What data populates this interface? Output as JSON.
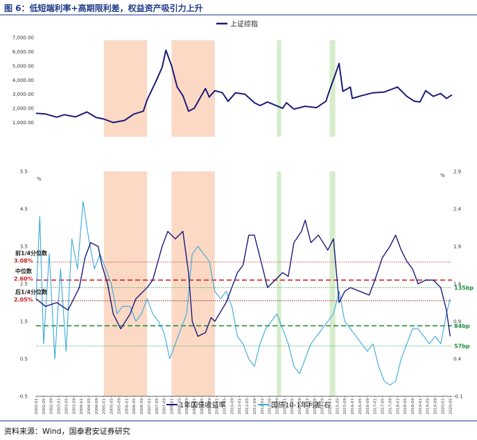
{
  "figure": {
    "title": "图 6：低短端利率+高期限利差，权益资产吸引力上升",
    "source": "资料来源：Wind，国泰君安证券研究"
  },
  "colors": {
    "index_line": "#1a1a7a",
    "yield_line": "#1a1a7a",
    "spread_line": "#38a8dc",
    "tightening_band": "#fbd9c5",
    "easing_band": "#d6ecca",
    "upper_quartile_line": "#c0392b",
    "median_line": "#cc1f1f",
    "lower_quartile_line": "#8b0000",
    "spread_135_line": "#3aa55a",
    "spread_84_line": "#1e8c3a",
    "spread_57_line": "#3aa55a",
    "red_text": "#cc1f1f",
    "green_text": "#1e8c3a"
  },
  "chart_data": [
    {
      "type": "line",
      "legend": [
        "上证综指"
      ],
      "legend_position": "top-center",
      "y_ticks": [
        "7,000.00",
        "6,000.00",
        "5,000.00",
        "4,000.00",
        "3,000.00",
        "2,000.00",
        "1,000.00"
      ],
      "ylim": [
        0,
        7000
      ],
      "xlim": [
        "2002-01",
        "2020-06"
      ],
      "grid": false,
      "series": [
        {
          "name": "上证综指",
          "points": [
            [
              "2002-01",
              1650
            ],
            [
              "2002-06",
              1600
            ],
            [
              "2002-12",
              1380
            ],
            [
              "2003-04",
              1550
            ],
            [
              "2003-10",
              1400
            ],
            [
              "2004-04",
              1750
            ],
            [
              "2004-09",
              1350
            ],
            [
              "2005-01",
              1250
            ],
            [
              "2005-06",
              1000
            ],
            [
              "2005-12",
              1150
            ],
            [
              "2006-05",
              1600
            ],
            [
              "2006-10",
              1800
            ],
            [
              "2006-12",
              2600
            ],
            [
              "2007-05",
              4000
            ],
            [
              "2007-08",
              4900
            ],
            [
              "2007-10",
              6100
            ],
            [
              "2008-01",
              5000
            ],
            [
              "2008-04",
              3500
            ],
            [
              "2008-07",
              2900
            ],
            [
              "2008-10",
              1800
            ],
            [
              "2009-01",
              2000
            ],
            [
              "2009-07",
              3400
            ],
            [
              "2009-09",
              2800
            ],
            [
              "2009-12",
              3250
            ],
            [
              "2010-04",
              3100
            ],
            [
              "2010-07",
              2500
            ],
            [
              "2010-11",
              3100
            ],
            [
              "2011-04",
              3000
            ],
            [
              "2011-09",
              2400
            ],
            [
              "2011-12",
              2200
            ],
            [
              "2012-04",
              2450
            ],
            [
              "2012-12",
              2000
            ],
            [
              "2013-02",
              2400
            ],
            [
              "2013-06",
              1950
            ],
            [
              "2013-12",
              2150
            ],
            [
              "2014-06",
              2050
            ],
            [
              "2014-11",
              2500
            ],
            [
              "2015-01",
              3300
            ],
            [
              "2015-04",
              4400
            ],
            [
              "2015-06",
              5170
            ],
            [
              "2015-08",
              3200
            ],
            [
              "2015-12",
              3500
            ],
            [
              "2016-01",
              2700
            ],
            [
              "2016-06",
              2900
            ],
            [
              "2016-12",
              3100
            ],
            [
              "2017-06",
              3150
            ],
            [
              "2017-11",
              3400
            ],
            [
              "2018-01",
              3500
            ],
            [
              "2018-06",
              2850
            ],
            [
              "2018-10",
              2500
            ],
            [
              "2019-01",
              2450
            ],
            [
              "2019-04",
              3250
            ],
            [
              "2019-08",
              2850
            ],
            [
              "2019-12",
              3050
            ],
            [
              "2020-03",
              2700
            ],
            [
              "2020-06",
              2950
            ]
          ]
        }
      ],
      "shaded_periods": [
        {
          "type": "tightening",
          "start": "2005-01",
          "end": "2006-12"
        },
        {
          "type": "tightening",
          "start": "2008-01",
          "end": "2009-12"
        },
        {
          "type": "easing",
          "start": "2012-09",
          "end": "2012-11"
        },
        {
          "type": "easing",
          "start": "2015-01",
          "end": "2015-04"
        }
      ]
    },
    {
      "type": "line",
      "ylabel_left": "%",
      "ylabel_right": "%",
      "y_ticks_left": [
        "5.5",
        "4.5",
        "3.5",
        "2.5",
        "1.5",
        "0.5",
        "-0.5"
      ],
      "y_ticks_right": [
        "2.9",
        "2.4",
        "1.9",
        "1.4",
        "0.9",
        "0.4",
        "-0.1"
      ],
      "ylim_left": [
        -0.5,
        5.5
      ],
      "ylim_right": [
        -0.1,
        2.9
      ],
      "xlim": [
        "2002-01",
        "2020-06"
      ],
      "x_ticks": [
        "2002-01",
        "2002-05",
        "2002-09",
        "2003-01",
        "2003-05",
        "2003-09",
        "2004-01",
        "2004-05",
        "2004-09",
        "2005-01",
        "2005-05",
        "2005-09",
        "2006-01",
        "2006-05",
        "2006-09",
        "2007-01",
        "2007-05",
        "2007-09",
        "2008-01",
        "2008-05",
        "2008-09",
        "2009-01",
        "2009-05",
        "2009-09",
        "2010-01",
        "2010-05",
        "2010-09",
        "2011-01",
        "2011-05",
        "2011-09",
        "2012-01",
        "2012-05",
        "2012-09",
        "2013-01",
        "2013-05",
        "2013-09",
        "2014-01",
        "2014-05",
        "2014-09",
        "2015-01",
        "2015-05",
        "2015-09",
        "2016-01",
        "2016-05",
        "2016-09",
        "2017-01",
        "2017-05",
        "2017-09",
        "2018-01",
        "2018-05",
        "2018-09",
        "2019-01",
        "2019-05",
        "2019-09",
        "2020-01",
        "2020-05"
      ],
      "legend": [
        "1年国债收益率",
        "国债10-1年利差 右"
      ],
      "legend_position": "bottom-center",
      "grid": false,
      "series": [
        {
          "name": "1年国债收益率",
          "axis": "left",
          "points": [
            [
              "2002-01",
              2.1
            ],
            [
              "2002-06",
              1.9
            ],
            [
              "2002-12",
              2.0
            ],
            [
              "2003-06",
              1.8
            ],
            [
              "2003-12",
              2.4
            ],
            [
              "2004-03",
              3.2
            ],
            [
              "2004-06",
              3.6
            ],
            [
              "2004-10",
              3.5
            ],
            [
              "2004-12",
              3.0
            ],
            [
              "2005-03",
              2.5
            ],
            [
              "2005-06",
              1.7
            ],
            [
              "2005-10",
              1.3
            ],
            [
              "2006-03",
              1.7
            ],
            [
              "2006-06",
              2.1
            ],
            [
              "2006-12",
              2.4
            ],
            [
              "2007-03",
              2.6
            ],
            [
              "2007-08",
              3.5
            ],
            [
              "2007-11",
              3.9
            ],
            [
              "2008-03",
              3.7
            ],
            [
              "2008-07",
              3.9
            ],
            [
              "2008-10",
              2.8
            ],
            [
              "2008-12",
              1.5
            ],
            [
              "2009-03",
              1.1
            ],
            [
              "2009-07",
              1.2
            ],
            [
              "2009-10",
              1.6
            ],
            [
              "2009-12",
              1.5
            ],
            [
              "2010-06",
              2.0
            ],
            [
              "2010-12",
              2.8
            ],
            [
              "2011-03",
              3.0
            ],
            [
              "2011-06",
              3.8
            ],
            [
              "2011-09",
              3.8
            ],
            [
              "2011-12",
              3.2
            ],
            [
              "2012-04",
              2.4
            ],
            [
              "2012-08",
              2.6
            ],
            [
              "2012-12",
              2.8
            ],
            [
              "2013-03",
              2.7
            ],
            [
              "2013-06",
              3.6
            ],
            [
              "2013-10",
              3.9
            ],
            [
              "2013-12",
              4.2
            ],
            [
              "2014-03",
              3.6
            ],
            [
              "2014-07",
              3.8
            ],
            [
              "2014-12",
              3.4
            ],
            [
              "2015-03",
              3.7
            ],
            [
              "2015-06",
              2.0
            ],
            [
              "2015-09",
              2.3
            ],
            [
              "2015-12",
              2.4
            ],
            [
              "2016-05",
              2.3
            ],
            [
              "2016-10",
              2.2
            ],
            [
              "2017-01",
              2.6
            ],
            [
              "2017-05",
              3.2
            ],
            [
              "2017-09",
              3.5
            ],
            [
              "2017-12",
              3.8
            ],
            [
              "2018-03",
              3.4
            ],
            [
              "2018-06",
              3.1
            ],
            [
              "2018-09",
              2.9
            ],
            [
              "2018-12",
              2.5
            ],
            [
              "2019-04",
              2.6
            ],
            [
              "2019-08",
              2.6
            ],
            [
              "2019-12",
              2.4
            ],
            [
              "2020-03",
              1.8
            ],
            [
              "2020-05",
              1.1
            ]
          ]
        },
        {
          "name": "国债10-1年利差 右",
          "axis": "right",
          "points": [
            [
              "2002-01",
              1.2
            ],
            [
              "2002-03",
              2.3
            ],
            [
              "2002-05",
              0.6
            ],
            [
              "2002-08",
              1.8
            ],
            [
              "2002-11",
              0.4
            ],
            [
              "2003-02",
              1.6
            ],
            [
              "2003-05",
              0.5
            ],
            [
              "2003-08",
              2.0
            ],
            [
              "2003-11",
              1.6
            ],
            [
              "2004-02",
              2.5
            ],
            [
              "2004-05",
              2.0
            ],
            [
              "2004-08",
              1.6
            ],
            [
              "2004-11",
              1.8
            ],
            [
              "2005-02",
              1.6
            ],
            [
              "2005-05",
              1.4
            ],
            [
              "2005-08",
              1.0
            ],
            [
              "2005-11",
              1.1
            ],
            [
              "2006-03",
              1.1
            ],
            [
              "2006-06",
              0.9
            ],
            [
              "2006-09",
              1.0
            ],
            [
              "2006-12",
              1.2
            ],
            [
              "2007-03",
              1.0
            ],
            [
              "2007-06",
              0.9
            ],
            [
              "2007-09",
              0.75
            ],
            [
              "2007-12",
              0.4
            ],
            [
              "2008-03",
              0.6
            ],
            [
              "2008-06",
              0.8
            ],
            [
              "2008-09",
              1.0
            ],
            [
              "2008-12",
              1.8
            ],
            [
              "2009-03",
              1.9
            ],
            [
              "2009-06",
              1.8
            ],
            [
              "2009-09",
              1.7
            ],
            [
              "2009-12",
              1.3
            ],
            [
              "2010-03",
              1.2
            ],
            [
              "2010-06",
              1.3
            ],
            [
              "2010-09",
              1.1
            ],
            [
              "2010-12",
              0.7
            ],
            [
              "2011-03",
              0.6
            ],
            [
              "2011-06",
              0.4
            ],
            [
              "2011-09",
              0.3
            ],
            [
              "2011-12",
              0.6
            ],
            [
              "2012-03",
              0.8
            ],
            [
              "2012-06",
              0.9
            ],
            [
              "2012-09",
              1.0
            ],
            [
              "2012-12",
              0.8
            ],
            [
              "2013-03",
              0.6
            ],
            [
              "2013-06",
              0.3
            ],
            [
              "2013-09",
              0.2
            ],
            [
              "2013-12",
              0.4
            ],
            [
              "2014-03",
              0.6
            ],
            [
              "2014-06",
              0.7
            ],
            [
              "2014-09",
              0.8
            ],
            [
              "2014-12",
              0.9
            ],
            [
              "2015-03",
              1.0
            ],
            [
              "2015-06",
              1.3
            ],
            [
              "2015-09",
              0.9
            ],
            [
              "2015-12",
              0.8
            ],
            [
              "2016-03",
              0.7
            ],
            [
              "2016-06",
              0.6
            ],
            [
              "2016-09",
              0.5
            ],
            [
              "2016-12",
              0.6
            ],
            [
              "2017-03",
              0.3
            ],
            [
              "2017-06",
              0.1
            ],
            [
              "2017-09",
              0.05
            ],
            [
              "2017-12",
              0.1
            ],
            [
              "2018-03",
              0.4
            ],
            [
              "2018-06",
              0.6
            ],
            [
              "2018-09",
              0.8
            ],
            [
              "2018-12",
              0.8
            ],
            [
              "2019-03",
              0.7
            ],
            [
              "2019-06",
              0.6
            ],
            [
              "2019-09",
              0.7
            ],
            [
              "2019-12",
              0.6
            ],
            [
              "2020-03",
              1.0
            ],
            [
              "2020-05",
              1.2
            ]
          ]
        }
      ],
      "reference_lines": [
        {
          "label": "前1/4分位数",
          "value_label": "3.08%",
          "axis": "left",
          "value": 3.08,
          "style": "dotted",
          "color_key": "upper_quartile_line"
        },
        {
          "label": "中位数",
          "value_label": "2.60%",
          "axis": "left",
          "value": 2.6,
          "style": "dashed",
          "color_key": "median_line"
        },
        {
          "label": "后1/4分位数",
          "value_label": "2.05%",
          "axis": "left",
          "value": 2.05,
          "style": "dotted",
          "color_key": "lower_quartile_line"
        },
        {
          "value_label": "135bp",
          "axis": "right",
          "value": 1.35,
          "style": "dotted",
          "color_key": "spread_135_line"
        },
        {
          "value_label": "84bp",
          "axis": "right",
          "value": 0.84,
          "style": "dashed",
          "color_key": "spread_84_line"
        },
        {
          "value_label": "57bp",
          "axis": "right",
          "value": 0.57,
          "style": "dotted",
          "color_key": "spread_57_line"
        }
      ],
      "shaded_periods": [
        {
          "type": "tightening",
          "start": "2005-01",
          "end": "2006-12"
        },
        {
          "type": "tightening",
          "start": "2008-01",
          "end": "2009-12"
        },
        {
          "type": "easing",
          "start": "2012-09",
          "end": "2012-11"
        },
        {
          "type": "easing",
          "start": "2015-01",
          "end": "2015-04"
        }
      ]
    }
  ]
}
